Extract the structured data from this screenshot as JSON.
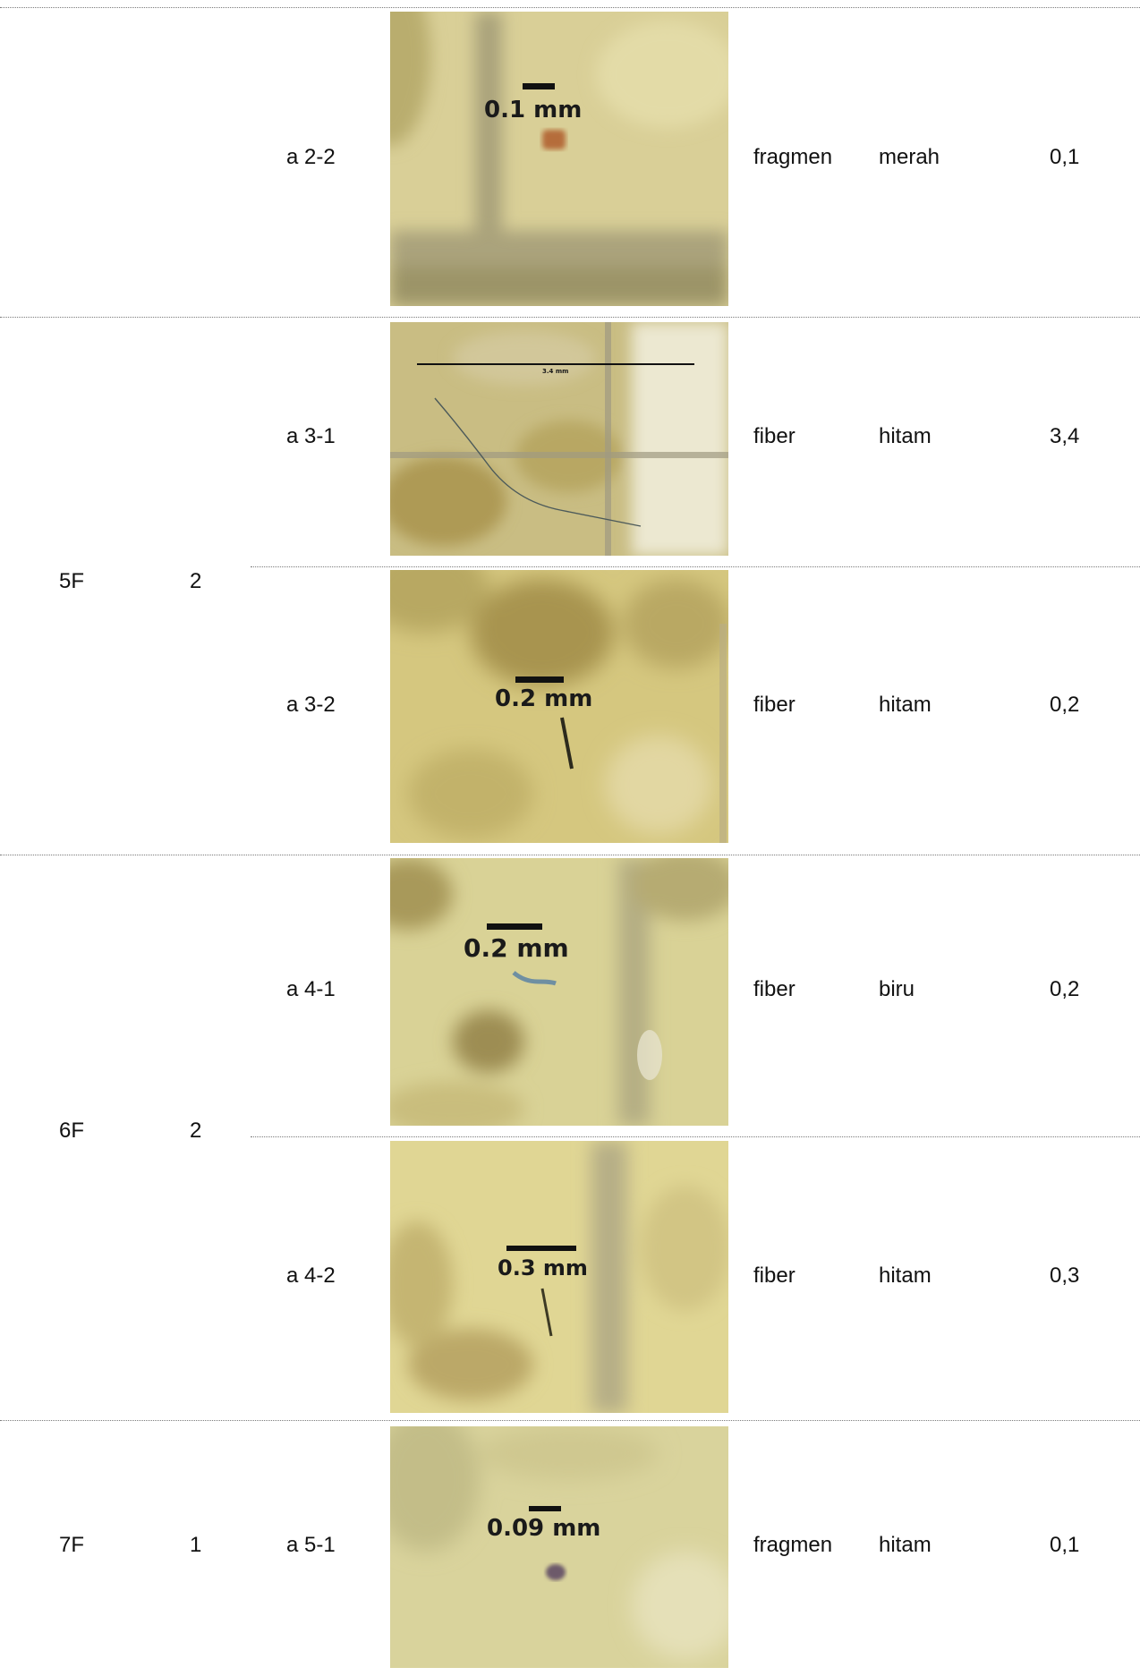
{
  "rows": [
    {
      "code": "a 2-2",
      "photo": {
        "scale_label": "0.1 mm"
      },
      "type": "fragmen",
      "color": "merah",
      "size": "0,1"
    },
    {
      "code": "a 3-1",
      "photo": {
        "scale_label": "3.4 mm"
      },
      "type": "fiber",
      "color": "hitam",
      "size": "3,4"
    },
    {
      "code": "a 3-2",
      "photo": {
        "scale_label": "0.2 mm"
      },
      "type": "fiber",
      "color": "hitam",
      "size": "0,2"
    },
    {
      "code": "a 4-1",
      "photo": {
        "scale_label": "0.2 mm"
      },
      "type": "fiber",
      "color": "biru",
      "size": "0,2"
    },
    {
      "code": "a 4-2",
      "photo": {
        "scale_label": "0.3 mm"
      },
      "type": "fiber",
      "color": "hitam",
      "size": "0,3"
    },
    {
      "code": "a 5-1",
      "photo": {
        "scale_label": "0.09 mm"
      },
      "type": "fragmen",
      "color": "hitam",
      "size": "0,1"
    }
  ],
  "groups": [
    {
      "sample": "5F",
      "count": "2"
    },
    {
      "sample": "6F",
      "count": "2"
    },
    {
      "sample": "7F",
      "count": "1"
    }
  ]
}
